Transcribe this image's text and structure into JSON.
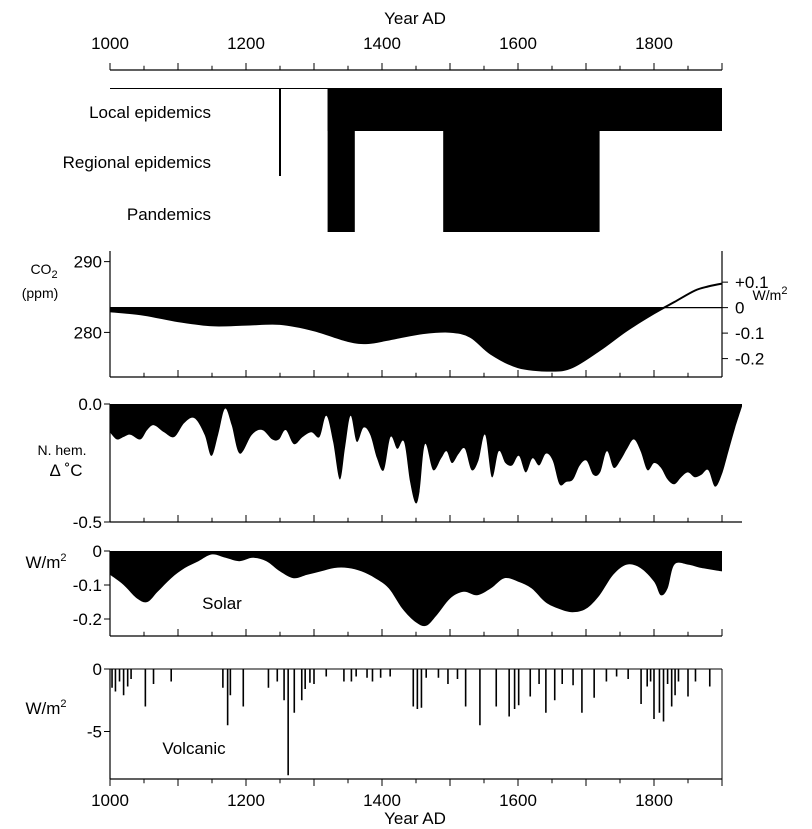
{
  "figure": {
    "top_xlabel": "Year AD",
    "bottom_xlabel": "Year AD",
    "x_ticks": [
      1000,
      1200,
      1400,
      1600,
      1800
    ]
  },
  "chart_data": [
    {
      "type": "timeline",
      "panel": "epidemics",
      "xlim": [
        1000,
        1900
      ],
      "categories": [
        "Local epidemics",
        "Regional epidemics",
        "Pandemics"
      ],
      "spans": [
        {
          "start": 1320,
          "end": 1360,
          "level": "Pandemics"
        },
        {
          "start": 1360,
          "end": 1490,
          "level": "Local epidemics"
        },
        {
          "start": 1490,
          "end": 1720,
          "level": "Pandemics"
        },
        {
          "start": 1720,
          "end": 1900,
          "level": "Local epidemics"
        }
      ],
      "marker": {
        "year": 1250,
        "from": "Local epidemics",
        "to": "Regional epidemics"
      }
    },
    {
      "type": "area",
      "panel": "co2",
      "ylabel_main": "CO",
      "ylabel_sub": "2",
      "ylabel_unit": "(ppm)",
      "left_ticks": [
        {
          "value": 290,
          "label": "290"
        },
        {
          "value": 280,
          "label": "280"
        }
      ],
      "right_ticks": [
        {
          "label": "+0.1",
          "ppm": 287.1
        },
        {
          "label": "0",
          "ppm": 283.5
        },
        {
          "label": "-0.1",
          "ppm": 279.9
        },
        {
          "label": "-0.2",
          "ppm": 276.3
        }
      ],
      "right_unit_main": "W/m",
      "right_unit_sup": "2",
      "baseline": 283.5,
      "ylim": [
        273.7,
        291.5
      ],
      "x": [
        1000,
        1050,
        1100,
        1150,
        1200,
        1250,
        1300,
        1350,
        1380,
        1420,
        1460,
        1500,
        1530,
        1560,
        1600,
        1650,
        1680,
        1720,
        1760,
        1800,
        1830,
        1860,
        1880,
        1900
      ],
      "values": [
        283.0,
        282.5,
        281.6,
        281.0,
        281.1,
        281.2,
        280.3,
        278.8,
        278.5,
        279.2,
        279.9,
        280.1,
        279.4,
        277.0,
        275.1,
        274.6,
        275.1,
        277.5,
        280.3,
        282.7,
        284.3,
        285.9,
        286.5,
        286.9
      ]
    },
    {
      "type": "area",
      "panel": "temperature",
      "ylabel": "N. hem.",
      "ylabel2": "Δ ˚C",
      "yticks": [
        {
          "value": 0.0,
          "label": "0.0"
        },
        {
          "value": -0.5,
          "label": "-0.5"
        }
      ],
      "ylim": [
        -0.5,
        0.0
      ],
      "x": [
        1000,
        1010,
        1020,
        1030,
        1045,
        1055,
        1065,
        1080,
        1095,
        1110,
        1125,
        1140,
        1150,
        1160,
        1170,
        1180,
        1192,
        1210,
        1225,
        1240,
        1250,
        1260,
        1272,
        1285,
        1298,
        1310,
        1320,
        1330,
        1340,
        1348,
        1356,
        1365,
        1375,
        1385,
        1395,
        1405,
        1415,
        1425,
        1435,
        1444,
        1452,
        1458,
        1466,
        1478,
        1490,
        1498,
        1506,
        1516,
        1525,
        1535,
        1545,
        1555,
        1565,
        1575,
        1585,
        1595,
        1605,
        1615,
        1625,
        1635,
        1645,
        1655,
        1665,
        1675,
        1685,
        1695,
        1705,
        1715,
        1725,
        1735,
        1745,
        1755,
        1765,
        1775,
        1785,
        1795,
        1805,
        1815,
        1825,
        1835,
        1845,
        1855,
        1865,
        1875,
        1885,
        1895,
        1905,
        1915,
        1925,
        1935
      ],
      "values": [
        -0.12,
        -0.15,
        -0.14,
        -0.13,
        -0.15,
        -0.11,
        -0.09,
        -0.12,
        -0.14,
        -0.08,
        -0.06,
        -0.13,
        -0.22,
        -0.13,
        -0.02,
        -0.09,
        -0.21,
        -0.13,
        -0.11,
        -0.15,
        -0.15,
        -0.11,
        -0.17,
        -0.14,
        -0.12,
        -0.14,
        -0.05,
        -0.16,
        -0.32,
        -0.18,
        -0.05,
        -0.16,
        -0.1,
        -0.13,
        -0.23,
        -0.28,
        -0.14,
        -0.19,
        -0.16,
        -0.33,
        -0.42,
        -0.37,
        -0.17,
        -0.28,
        -0.23,
        -0.2,
        -0.25,
        -0.21,
        -0.19,
        -0.28,
        -0.24,
        -0.13,
        -0.31,
        -0.2,
        -0.25,
        -0.26,
        -0.22,
        -0.29,
        -0.23,
        -0.26,
        -0.21,
        -0.24,
        -0.34,
        -0.33,
        -0.32,
        -0.26,
        -0.24,
        -0.3,
        -0.29,
        -0.2,
        -0.27,
        -0.24,
        -0.19,
        -0.15,
        -0.2,
        -0.28,
        -0.25,
        -0.27,
        -0.32,
        -0.34,
        -0.31,
        -0.29,
        -0.31,
        -0.3,
        -0.28,
        -0.35,
        -0.3,
        -0.2,
        -0.1,
        -0.01
      ]
    },
    {
      "type": "area",
      "panel": "solar",
      "ylabel_main": "W/m",
      "ylabel_sup": "2",
      "label": "Solar",
      "yticks": [
        {
          "value": 0,
          "label": "0"
        },
        {
          "value": -0.1,
          "label": "-0.1"
        },
        {
          "value": -0.2,
          "label": "-0.2"
        }
      ],
      "ylim": [
        -0.25,
        0.0
      ],
      "x": [
        1000,
        1020,
        1040,
        1055,
        1070,
        1090,
        1110,
        1130,
        1150,
        1170,
        1190,
        1210,
        1230,
        1250,
        1270,
        1290,
        1310,
        1330,
        1350,
        1370,
        1390,
        1410,
        1430,
        1450,
        1465,
        1480,
        1500,
        1520,
        1540,
        1560,
        1580,
        1600,
        1620,
        1640,
        1660,
        1680,
        1700,
        1720,
        1740,
        1760,
        1780,
        1800,
        1810,
        1820,
        1830,
        1850,
        1870,
        1900
      ],
      "values": [
        -0.07,
        -0.1,
        -0.14,
        -0.15,
        -0.12,
        -0.08,
        -0.05,
        -0.03,
        -0.01,
        -0.02,
        -0.03,
        -0.02,
        -0.03,
        -0.06,
        -0.08,
        -0.07,
        -0.06,
        -0.05,
        -0.05,
        -0.06,
        -0.08,
        -0.11,
        -0.17,
        -0.21,
        -0.22,
        -0.19,
        -0.14,
        -0.12,
        -0.13,
        -0.11,
        -0.08,
        -0.09,
        -0.11,
        -0.15,
        -0.17,
        -0.18,
        -0.17,
        -0.13,
        -0.07,
        -0.04,
        -0.05,
        -0.09,
        -0.13,
        -0.11,
        -0.04,
        -0.04,
        -0.05,
        -0.06
      ]
    },
    {
      "type": "bar",
      "panel": "volcanic",
      "ylabel_main": "W/m",
      "ylabel_sup": "2",
      "label": "Volcanic",
      "yticks": [
        {
          "value": 0,
          "label": "0"
        },
        {
          "value": -5,
          "label": "-5"
        }
      ],
      "ylim": [
        -8.8,
        0
      ],
      "x": [
        1003,
        1008,
        1014,
        1020,
        1026,
        1031,
        1052,
        1064,
        1090,
        1166,
        1173,
        1177,
        1196,
        1233,
        1246,
        1256,
        1262,
        1271,
        1282,
        1287,
        1294,
        1300,
        1318,
        1344,
        1355,
        1362,
        1378,
        1386,
        1398,
        1412,
        1446,
        1452,
        1458,
        1465,
        1483,
        1497,
        1511,
        1523,
        1544,
        1568,
        1587,
        1595,
        1601,
        1618,
        1631,
        1641,
        1654,
        1665,
        1681,
        1694,
        1712,
        1730,
        1745,
        1762,
        1781,
        1790,
        1795,
        1800,
        1808,
        1814,
        1820,
        1826,
        1831,
        1836,
        1850,
        1861,
        1882
      ],
      "values": [
        -1.5,
        -1.8,
        -1.0,
        -2.1,
        -1.4,
        -0.8,
        -3.0,
        -1.2,
        -1.0,
        -1.5,
        -4.5,
        -2.1,
        -3.0,
        -1.5,
        -1.0,
        -2.5,
        -8.5,
        -3.5,
        -2.5,
        -1.6,
        -1.1,
        -1.2,
        -0.6,
        -1.0,
        -1.0,
        -0.6,
        -0.7,
        -1.0,
        -0.7,
        -0.6,
        -3.0,
        -3.2,
        -3.1,
        -0.7,
        -0.7,
        -1.2,
        -0.8,
        -3.0,
        -4.5,
        -3.0,
        -3.8,
        -3.2,
        -2.9,
        -2.2,
        -1.2,
        -3.5,
        -2.5,
        -1.2,
        -1.3,
        -3.5,
        -2.3,
        -1.0,
        -0.6,
        -0.8,
        -2.8,
        -1.4,
        -1.0,
        -4.0,
        -3.5,
        -4.2,
        -1.2,
        -3.0,
        -2.1,
        -1.0,
        -2.2,
        -1.0,
        -1.4
      ]
    }
  ]
}
